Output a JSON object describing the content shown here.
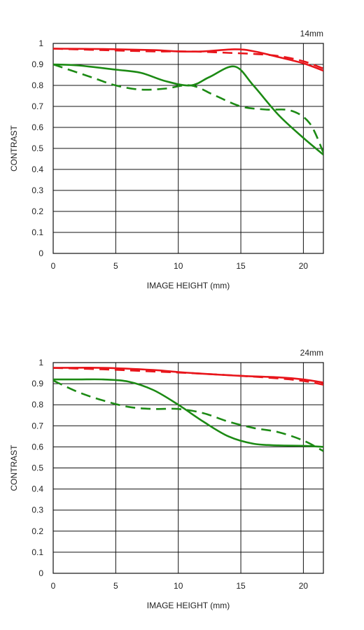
{
  "colors": {
    "sagittal": "#e8151b",
    "meridional": "#1c8a14",
    "grid": "#111111"
  },
  "chart_data": [
    {
      "type": "line",
      "title": "14mm",
      "xlabel": "IMAGE HEIGHT (mm)",
      "ylabel": "CONTRAST",
      "xlim": [
        0,
        21.6
      ],
      "ylim": [
        0,
        1
      ],
      "xticks": [
        0,
        5,
        10,
        15,
        20
      ],
      "yticks": [
        0,
        0.1,
        0.2,
        0.3,
        0.4,
        0.5,
        0.6,
        0.7,
        0.8,
        0.9,
        1
      ],
      "ytick_labels": [
        "0",
        "0.1",
        "0.2",
        "0.3",
        "0.4",
        "0.5",
        "0.6",
        "0.7",
        "0.8",
        "0.9",
        "1"
      ],
      "grid": true,
      "series": [
        {
          "color": "sagittal",
          "style": "solid",
          "x": [
            0,
            4,
            8,
            10,
            12,
            14.5,
            16,
            18,
            20,
            21.6
          ],
          "y": [
            0.975,
            0.973,
            0.968,
            0.962,
            0.962,
            0.972,
            0.963,
            0.935,
            0.905,
            0.87
          ]
        },
        {
          "color": "sagittal",
          "style": "dashed",
          "x": [
            0,
            4,
            8,
            10,
            12,
            14,
            16,
            18,
            20,
            21.6
          ],
          "y": [
            0.975,
            0.968,
            0.962,
            0.962,
            0.96,
            0.955,
            0.95,
            0.94,
            0.915,
            0.88
          ]
        },
        {
          "color": "meridional",
          "style": "solid",
          "x": [
            0,
            2,
            5,
            7,
            9,
            11,
            12.5,
            14.5,
            16,
            18,
            20,
            21.6
          ],
          "y": [
            0.9,
            0.895,
            0.875,
            0.86,
            0.82,
            0.8,
            0.84,
            0.89,
            0.8,
            0.66,
            0.55,
            0.47
          ]
        },
        {
          "color": "meridional",
          "style": "dashed",
          "x": [
            0,
            3,
            5,
            7,
            9,
            11,
            13,
            15,
            17,
            19,
            20.5,
            21.6
          ],
          "y": [
            0.9,
            0.84,
            0.8,
            0.78,
            0.785,
            0.8,
            0.75,
            0.7,
            0.685,
            0.68,
            0.62,
            0.48
          ]
        }
      ]
    },
    {
      "type": "line",
      "title": "24mm",
      "xlabel": "IMAGE HEIGHT (mm)",
      "ylabel": "CONTRAST",
      "xlim": [
        0,
        21.6
      ],
      "ylim": [
        0,
        1
      ],
      "xticks": [
        0,
        5,
        10,
        15,
        20
      ],
      "yticks": [
        0,
        0.1,
        0.2,
        0.3,
        0.4,
        0.5,
        0.6,
        0.7,
        0.8,
        0.9,
        1
      ],
      "ytick_labels": [
        "0",
        "0.1",
        "0.2",
        "0.3",
        "0.4",
        "0.5",
        "0.6",
        "0.7",
        "0.8",
        "0.9",
        "1"
      ],
      "grid": true,
      "series": [
        {
          "color": "sagittal",
          "style": "solid",
          "x": [
            0,
            4,
            8,
            10,
            12,
            15,
            18,
            20,
            21.6
          ],
          "y": [
            0.975,
            0.975,
            0.965,
            0.955,
            0.947,
            0.937,
            0.93,
            0.92,
            0.905
          ]
        },
        {
          "color": "sagittal",
          "style": "dashed",
          "x": [
            0,
            4,
            8,
            10,
            12,
            15,
            18,
            20,
            21.6
          ],
          "y": [
            0.975,
            0.968,
            0.958,
            0.953,
            0.947,
            0.937,
            0.925,
            0.913,
            0.895
          ]
        },
        {
          "color": "meridional",
          "style": "solid",
          "x": [
            0,
            2,
            4,
            6,
            8,
            10,
            12,
            14,
            16,
            18,
            20,
            21.6
          ],
          "y": [
            0.92,
            0.92,
            0.92,
            0.91,
            0.87,
            0.8,
            0.72,
            0.65,
            0.615,
            0.607,
            0.605,
            0.6
          ]
        },
        {
          "color": "meridional",
          "style": "dashed",
          "x": [
            0,
            2,
            4,
            6,
            8,
            10,
            12,
            14,
            16,
            18,
            20,
            21.6
          ],
          "y": [
            0.915,
            0.86,
            0.82,
            0.79,
            0.78,
            0.78,
            0.76,
            0.72,
            0.69,
            0.67,
            0.63,
            0.58
          ]
        }
      ]
    }
  ]
}
